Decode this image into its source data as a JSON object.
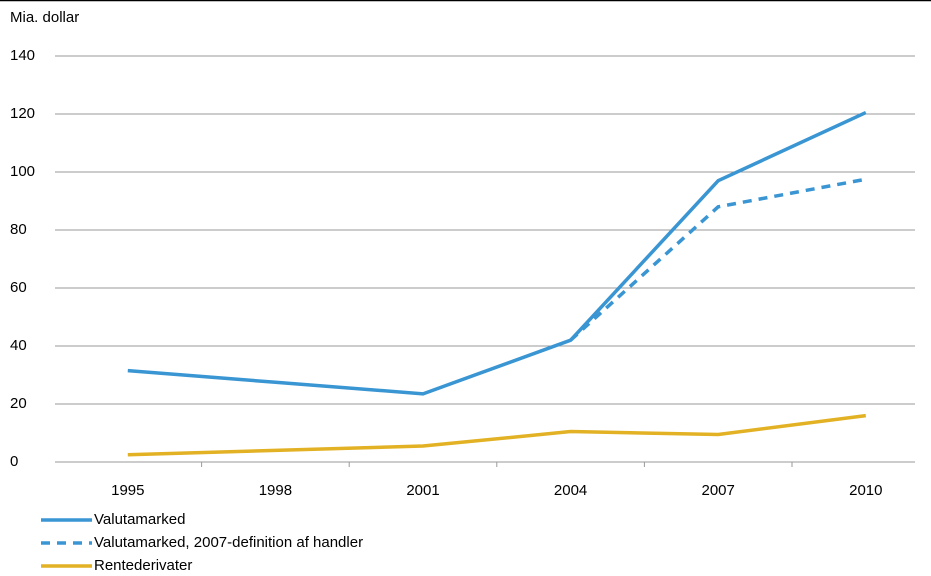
{
  "chart_data": {
    "type": "line",
    "y_axis_label": "Mia. dollar",
    "categories": [
      "1995",
      "1998",
      "2001",
      "2004",
      "2007",
      "2010"
    ],
    "series": [
      {
        "name": "Valutamarked",
        "color": "#3a95d3",
        "dashed": false,
        "values": [
          31.5,
          27.5,
          23.5,
          42,
          97,
          120.5
        ]
      },
      {
        "name": "Valutamarked, 2007-definition af handler",
        "color": "#3a95d3",
        "dashed": true,
        "values": [
          null,
          null,
          null,
          42,
          88,
          97.5
        ]
      },
      {
        "name": "Rentederivater",
        "color": "#e2b124",
        "dashed": false,
        "values": [
          2.5,
          4,
          5.5,
          10.5,
          9.5,
          16
        ]
      }
    ],
    "ylim": [
      0,
      140
    ],
    "yticks": [
      0,
      20,
      40,
      60,
      80,
      100,
      120,
      140
    ],
    "grid": true
  }
}
